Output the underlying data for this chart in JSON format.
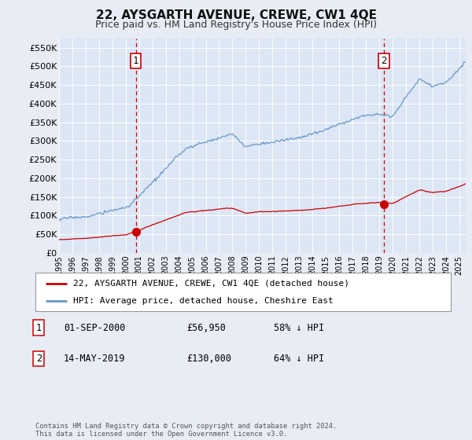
{
  "title": "22, AYSGARTH AVENUE, CREWE, CW1 4QE",
  "subtitle": "Price paid vs. HM Land Registry's House Price Index (HPI)",
  "outer_bg": "#e8ecf5",
  "plot_bg": "#dce6f5",
  "hpi_color": "#6699cc",
  "price_color": "#cc0000",
  "dashed_color": "#cc0000",
  "ylim": [
    0,
    575000
  ],
  "yticks": [
    0,
    50000,
    100000,
    150000,
    200000,
    250000,
    300000,
    350000,
    400000,
    450000,
    500000,
    550000
  ],
  "ytick_labels": [
    "£0",
    "£50K",
    "£100K",
    "£150K",
    "£200K",
    "£250K",
    "£300K",
    "£350K",
    "£400K",
    "£450K",
    "£500K",
    "£550K"
  ],
  "sale1_year": 2000.75,
  "sale1_value": 56950,
  "sale1_label": "1",
  "sale2_year": 2019.37,
  "sale2_value": 130000,
  "sale2_label": "2",
  "legend_line1": "22, AYSGARTH AVENUE, CREWE, CW1 4QE (detached house)",
  "legend_line2": "HPI: Average price, detached house, Cheshire East",
  "info1_label": "1",
  "info1_date": "01-SEP-2000",
  "info1_price": "£56,950",
  "info1_note": "58% ↓ HPI",
  "info2_label": "2",
  "info2_date": "14-MAY-2019",
  "info2_price": "£130,000",
  "info2_note": "64% ↓ HPI",
  "footer": "Contains HM Land Registry data © Crown copyright and database right 2024.\nThis data is licensed under the Open Government Licence v3.0.",
  "xmin": 1995,
  "xmax": 2025.5
}
